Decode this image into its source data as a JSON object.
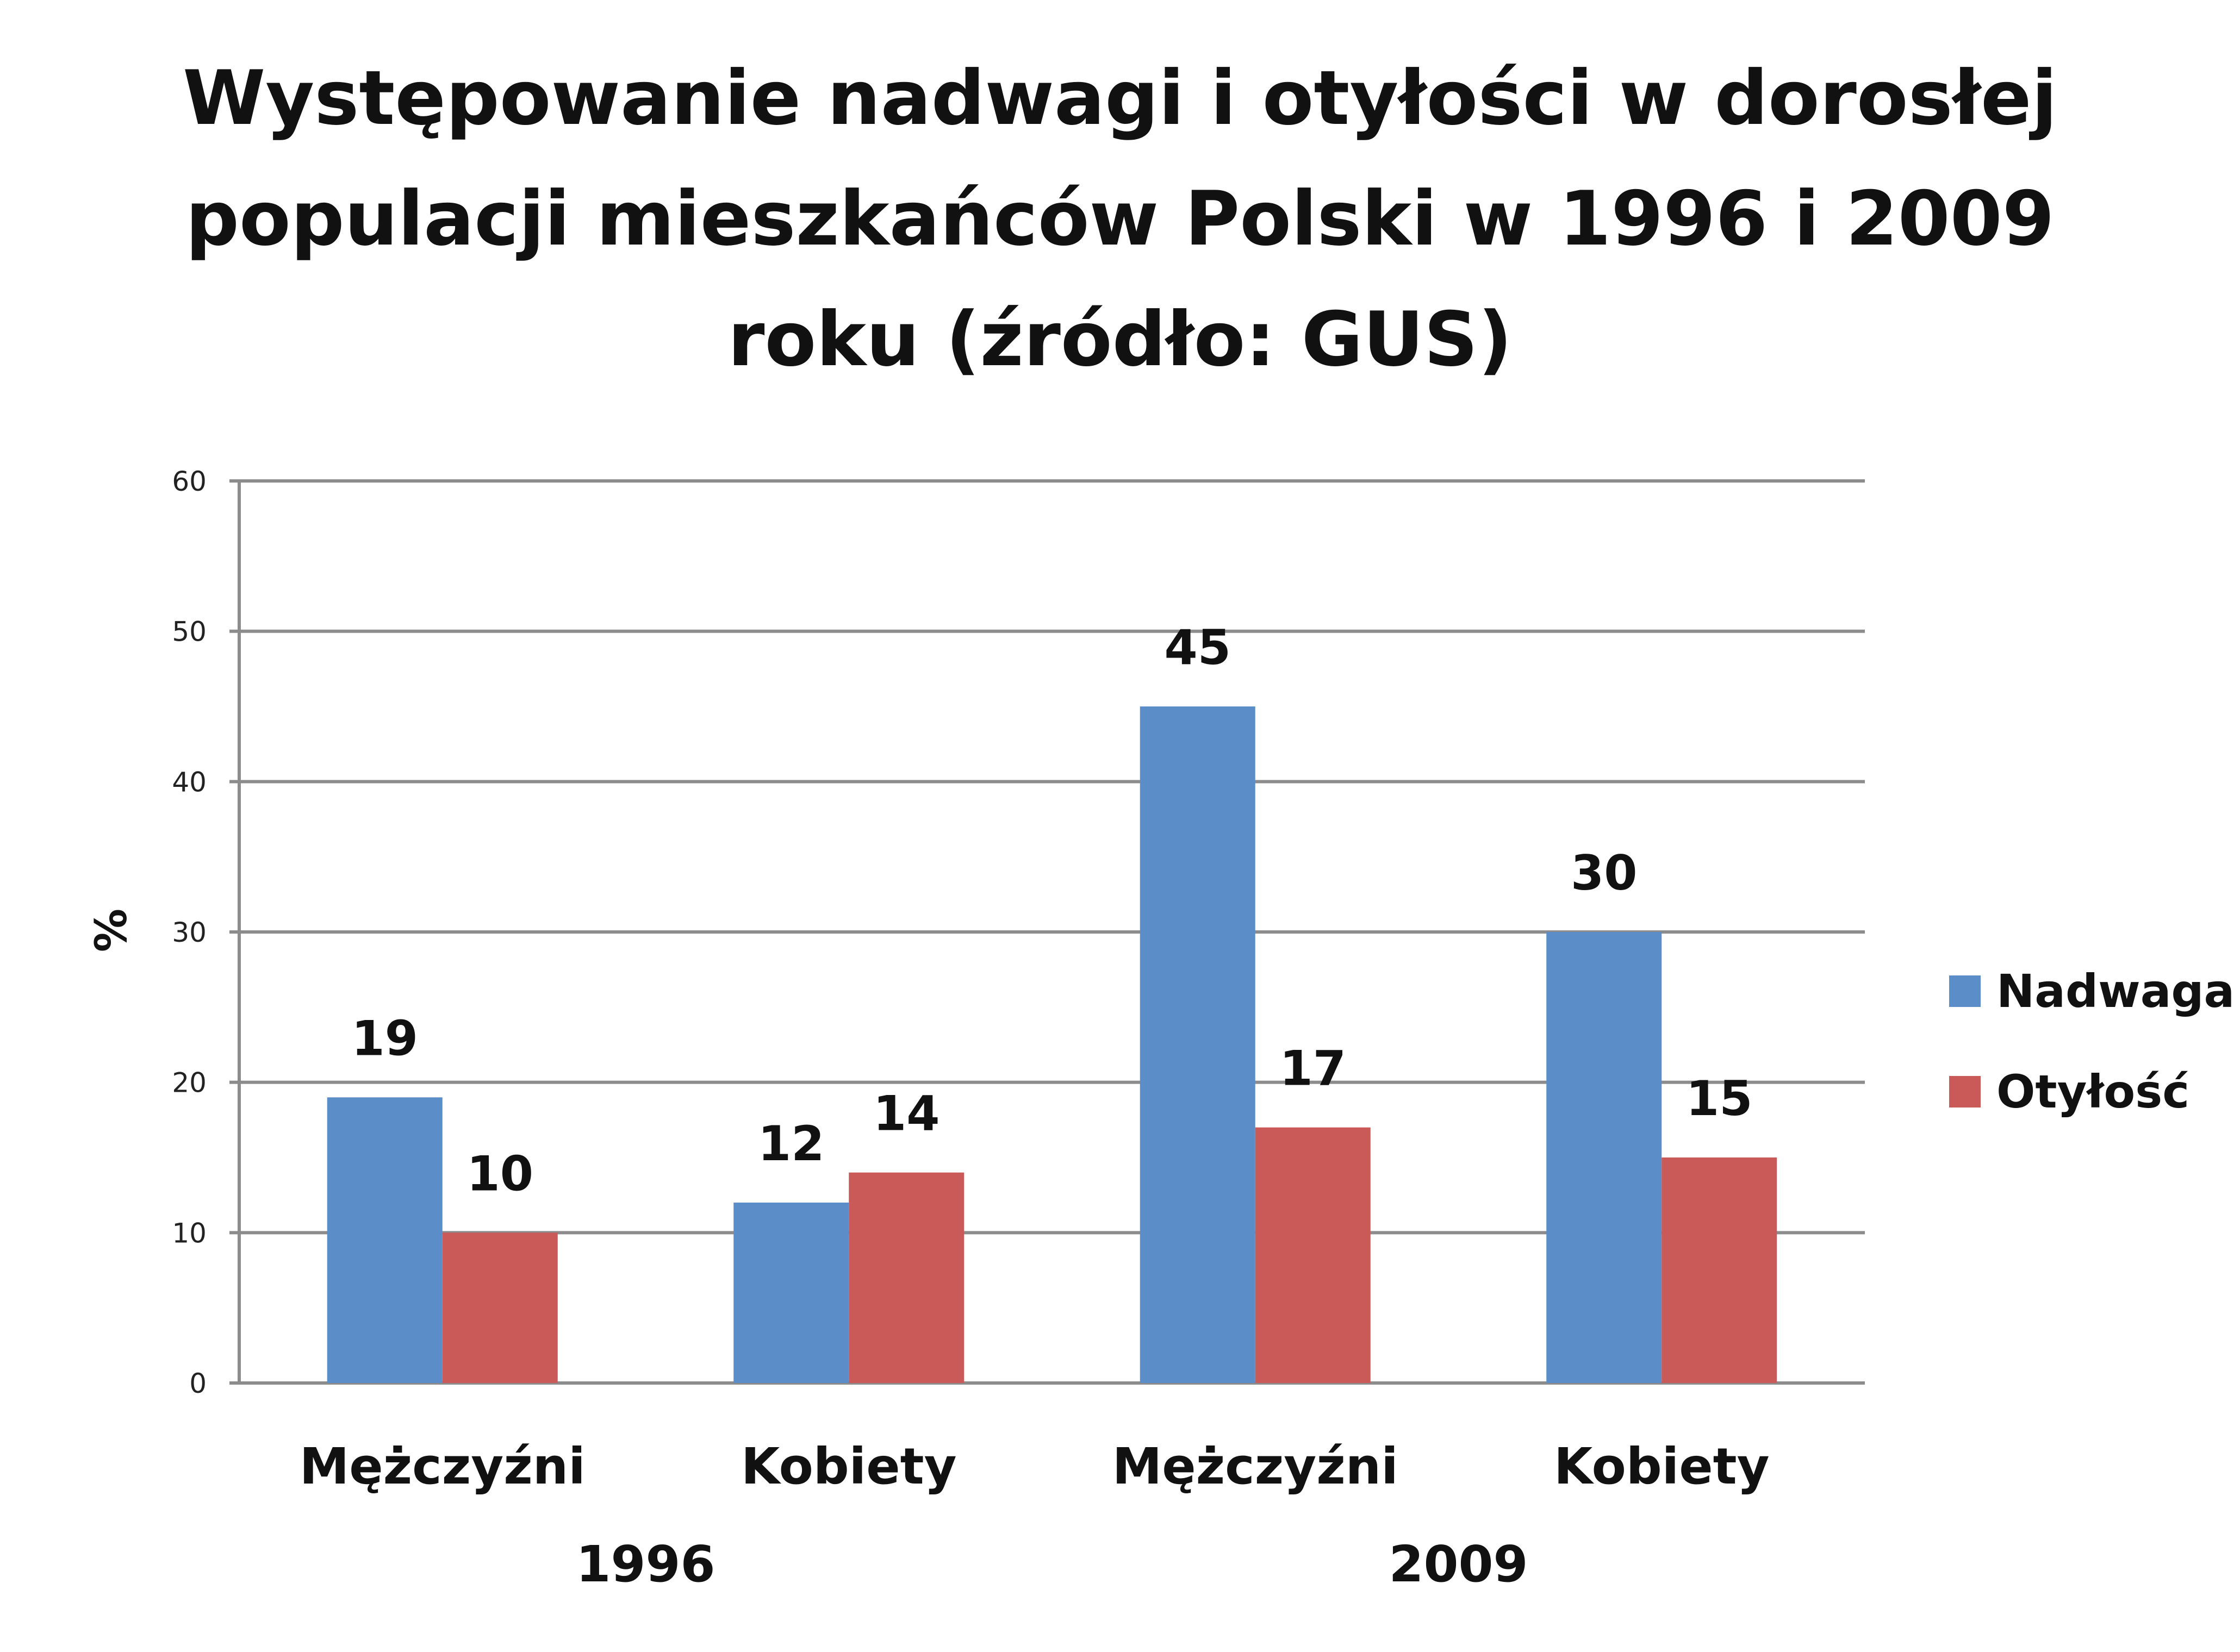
{
  "chart_data": {
    "type": "bar",
    "title": "Występowanie nadwagi i otyłości w dorosłej populacji mieszkańców Polski w 1996 i 2009 roku (źródło: GUS)",
    "title_lines": [
      "Występowanie nadwagi i otyłości w dorosłej",
      "populacji mieszkańców Polski w 1996 i 2009",
      "roku (źródło: GUS)"
    ],
    "ylabel": "%",
    "xlabel": "",
    "ylim": [
      0,
      60
    ],
    "yticks": [
      0,
      10,
      20,
      30,
      40,
      50,
      60
    ],
    "grid": true,
    "legend_position": "right",
    "categories": [
      "Mężczyźni",
      "Kobiety",
      "Mężczyźni",
      "Kobiety"
    ],
    "groups": [
      {
        "label": "1996",
        "categories": [
          0,
          1
        ]
      },
      {
        "label": "2009",
        "categories": [
          2,
          3
        ]
      }
    ],
    "series": [
      {
        "name": "Nadwaga",
        "color": "#5b8ec9",
        "values": [
          19,
          12,
          45,
          30
        ]
      },
      {
        "name": "Otyłość",
        "color": "#c95a58",
        "values": [
          10,
          14,
          17,
          15
        ]
      }
    ]
  }
}
